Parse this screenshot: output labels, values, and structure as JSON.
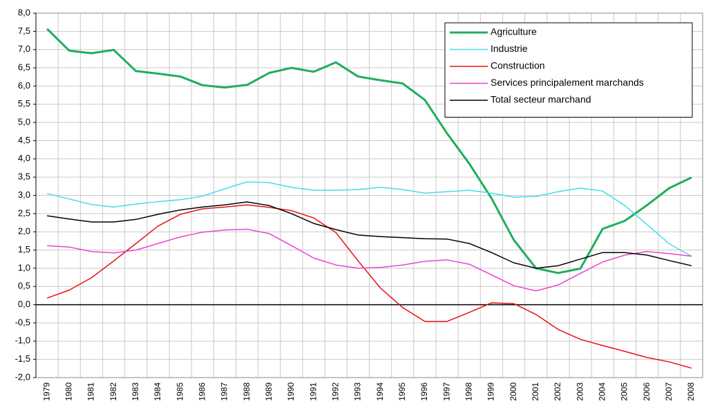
{
  "chart_data": {
    "type": "line",
    "categories": [
      "1979",
      "1980",
      "1981",
      "1982",
      "1983",
      "1984",
      "1985",
      "1986",
      "1987",
      "1988",
      "1989",
      "1990",
      "1991",
      "1992",
      "1993",
      "1994",
      "1995",
      "1996",
      "1997",
      "1998",
      "1999",
      "2000",
      "2001",
      "2002",
      "2003",
      "2004",
      "2005",
      "2006",
      "2007",
      "2008"
    ],
    "series": [
      {
        "name": "Agriculture",
        "color": "#1fad5b",
        "width": 3,
        "values": [
          7.57,
          6.97,
          6.9,
          6.99,
          6.41,
          6.34,
          6.26,
          6.02,
          5.96,
          6.03,
          6.36,
          6.5,
          6.39,
          6.65,
          6.26,
          6.16,
          6.07,
          5.62,
          4.7,
          3.87,
          2.92,
          1.78,
          1.0,
          0.87,
          0.99,
          2.08,
          2.3,
          2.73,
          3.2,
          3.49
        ]
      },
      {
        "name": "Industrie",
        "color": "#44dcec",
        "width": 1.5,
        "values": [
          3.05,
          2.9,
          2.75,
          2.68,
          2.76,
          2.83,
          2.88,
          2.98,
          3.18,
          3.37,
          3.35,
          3.22,
          3.14,
          3.14,
          3.16,
          3.22,
          3.16,
          3.06,
          3.1,
          3.14,
          3.06,
          2.95,
          2.97,
          3.1,
          3.2,
          3.12,
          2.72,
          2.2,
          1.67,
          1.33
        ]
      },
      {
        "name": "Construction",
        "color": "#e81010",
        "width": 1.5,
        "values": [
          0.18,
          0.4,
          0.74,
          1.2,
          1.68,
          2.16,
          2.48,
          2.63,
          2.68,
          2.74,
          2.67,
          2.58,
          2.38,
          1.98,
          1.2,
          0.46,
          -0.08,
          -0.46,
          -0.46,
          -0.21,
          0.05,
          0.03,
          -0.27,
          -0.68,
          -0.95,
          -1.12,
          -1.28,
          -1.45,
          -1.57,
          -1.74
        ]
      },
      {
        "name": "Services principalement marchands",
        "color": "#f040d0",
        "width": 1.5,
        "values": [
          1.62,
          1.58,
          1.46,
          1.42,
          1.5,
          1.68,
          1.86,
          1.99,
          2.05,
          2.07,
          1.95,
          1.62,
          1.28,
          1.09,
          1.0,
          1.02,
          1.09,
          1.19,
          1.23,
          1.11,
          0.82,
          0.52,
          0.38,
          0.54,
          0.86,
          1.17,
          1.36,
          1.46,
          1.4,
          1.33
        ]
      },
      {
        "name": "Total secteur marchand",
        "color": "#000000",
        "width": 1.5,
        "values": [
          2.44,
          2.35,
          2.27,
          2.27,
          2.34,
          2.48,
          2.6,
          2.68,
          2.74,
          2.82,
          2.72,
          2.5,
          2.23,
          2.06,
          1.91,
          1.87,
          1.84,
          1.81,
          1.8,
          1.68,
          1.43,
          1.15,
          1.0,
          1.07,
          1.25,
          1.43,
          1.43,
          1.36,
          1.21,
          1.07
        ]
      }
    ],
    "ylim": [
      -2,
      8
    ],
    "yticks": [
      {
        "value": -2,
        "label": "-2,0"
      },
      {
        "value": -1.5,
        "label": "-1,5"
      },
      {
        "value": -1,
        "label": "-1,0"
      },
      {
        "value": -0.5,
        "label": "-0,5"
      },
      {
        "value": 0,
        "label": "0,0"
      },
      {
        "value": 0.5,
        "label": "0,5"
      },
      {
        "value": 1,
        "label": "1,0"
      },
      {
        "value": 1.5,
        "label": "1,5"
      },
      {
        "value": 2,
        "label": "2,0"
      },
      {
        "value": 2.5,
        "label": "2,5"
      },
      {
        "value": 3,
        "label": "3,0"
      },
      {
        "value": 3.5,
        "label": "3,5"
      },
      {
        "value": 4,
        "label": "4,0"
      },
      {
        "value": 4.5,
        "label": "4,5"
      },
      {
        "value": 5,
        "label": "5,0"
      },
      {
        "value": 5.5,
        "label": "5,5"
      },
      {
        "value": 6,
        "label": "6,0"
      },
      {
        "value": 6.5,
        "label": "6,5"
      },
      {
        "value": 7,
        "label": "7,0"
      },
      {
        "value": 7.5,
        "label": "7,5"
      },
      {
        "value": 8,
        "label": "8,0"
      }
    ],
    "grid": true,
    "legend": "top-right"
  }
}
